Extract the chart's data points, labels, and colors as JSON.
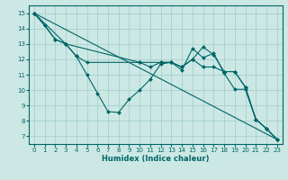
{
  "xlabel": "Humidex (Indice chaleur)",
  "background_color": "#cce8e4",
  "grid_color": "#aad4d0",
  "line_color": "#006666",
  "spine_color": "#006666",
  "xlim": [
    -0.5,
    23.5
  ],
  "ylim": [
    6.5,
    15.5
  ],
  "xticks": [
    0,
    1,
    2,
    3,
    4,
    5,
    6,
    7,
    8,
    9,
    10,
    11,
    12,
    13,
    14,
    15,
    16,
    17,
    18,
    19,
    20,
    21,
    22,
    23
  ],
  "yticks": [
    7,
    8,
    9,
    10,
    11,
    12,
    13,
    14,
    15
  ],
  "series": [
    {
      "x": [
        0,
        1,
        2,
        3,
        4,
        5,
        6,
        7,
        8,
        9,
        10,
        11,
        12,
        13,
        14,
        15,
        16,
        17,
        18,
        19,
        20,
        21,
        22,
        23
      ],
      "y": [
        15,
        14.2,
        13.3,
        13.0,
        12.2,
        11.0,
        9.8,
        8.6,
        8.55,
        9.4,
        10.0,
        10.7,
        11.7,
        11.8,
        11.3,
        12.7,
        12.1,
        12.4,
        11.1,
        10.05,
        10.05,
        8.1,
        7.5,
        6.8
      ]
    },
    {
      "x": [
        0,
        1,
        2,
        3,
        4,
        5,
        10,
        11,
        12,
        13,
        14,
        15,
        16,
        17,
        18,
        19,
        20,
        21,
        22,
        23
      ],
      "y": [
        15,
        14.2,
        13.3,
        13.0,
        12.2,
        11.8,
        11.8,
        11.5,
        11.8,
        11.8,
        11.5,
        12.0,
        11.5,
        11.5,
        11.2,
        11.2,
        10.2,
        8.1,
        7.5,
        6.8
      ]
    },
    {
      "x": [
        0,
        23
      ],
      "y": [
        15,
        6.8
      ]
    },
    {
      "x": [
        0,
        3,
        10,
        12,
        13,
        14,
        15,
        16,
        17,
        18,
        19,
        20,
        21,
        22,
        23
      ],
      "y": [
        15,
        13.0,
        11.8,
        11.8,
        11.8,
        11.5,
        12.0,
        12.8,
        12.3,
        11.2,
        11.2,
        10.2,
        8.1,
        7.5,
        6.8
      ]
    }
  ]
}
